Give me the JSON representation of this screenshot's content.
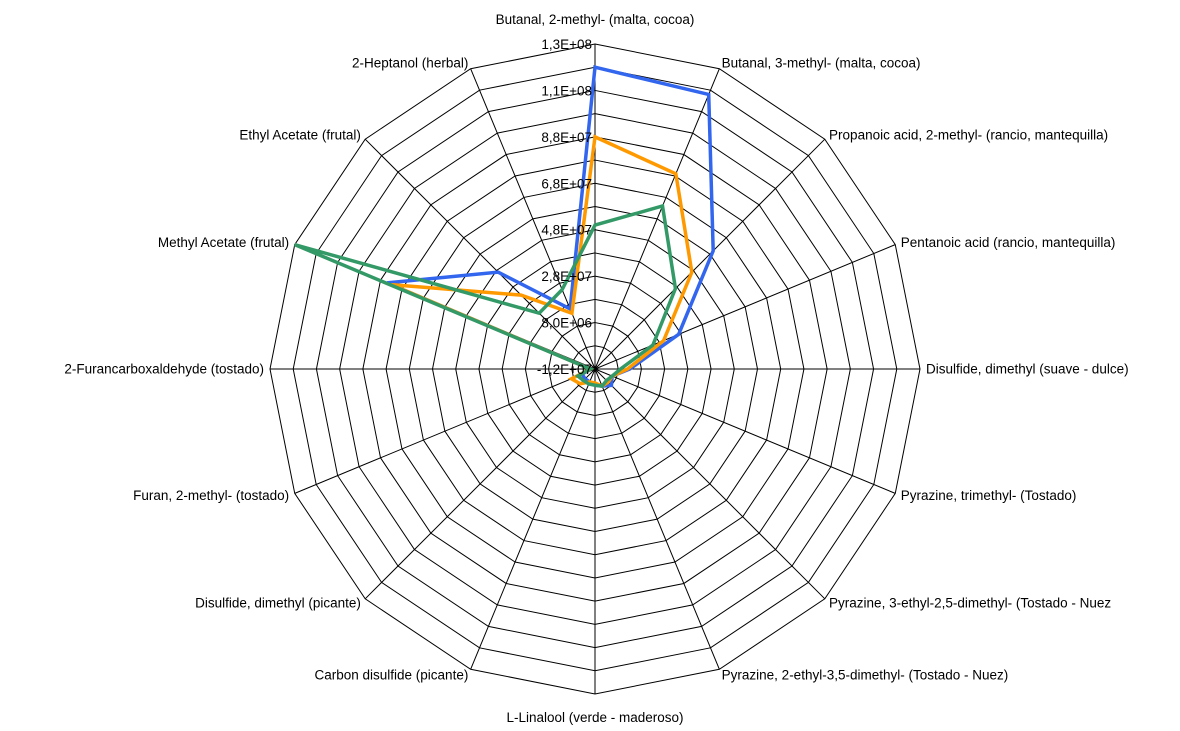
{
  "chart_data": {
    "type": "radar",
    "axes": [
      "Butanal, 2-methyl- (malta, cocoa)",
      "Butanal, 3-methyl- (malta, cocoa)",
      "Propanoic acid, 2-methyl- (rancio, mantequilla)",
      "Pentanoic acid (rancio, mantequilla)",
      "Disulfide, dimethyl (suave - dulce)",
      "Pyrazine, trimethyl- (Tostado)",
      "Pyrazine, 3-ethyl-2,5-dimethyl- (Tostado - Nuez",
      "Pyrazine, 2-ethyl-3,5-dimethyl-  (Tostado - Nuez)",
      "L-Linalool (verde - maderoso)",
      "Carbon disulfide (picante)",
      "Disulfide, dimethyl (picante)",
      "Furan, 2-methyl- (tostado)",
      "2-Furancarboxaldehyde (tostado)",
      "Methyl Acetate (frutal)",
      "Ethyl Acetate (frutal)",
      "2-Heptanol (herbal)"
    ],
    "ticks": [
      "-1,2E+07",
      "8,0E+06",
      "2,8E+07",
      "4,8E+07",
      "6,8E+07",
      "8,8E+07",
      "1,1E+08",
      "1,3E+08"
    ],
    "rlim": [
      -12000000,
      128000000
    ],
    "grid": true,
    "series": [
      {
        "color": "#3366ee",
        "values": [
          118000000,
          116000000,
          60000000,
          27000000,
          3000000,
          -4000000,
          -2000000,
          -4000000,
          -5000000,
          -6000000,
          -6000000,
          -6000000,
          -10000000,
          85000000,
          47000000,
          16000000
        ]
      },
      {
        "color": "#ff9900",
        "values": [
          88000000,
          79000000,
          47000000,
          20000000,
          2000000,
          -4000000,
          -4000000,
          -4000000,
          -6000000,
          -6000000,
          -3000000,
          -1000000,
          -10000000,
          83000000,
          33000000,
          14000000
        ]
      },
      {
        "color": "#339966",
        "values": [
          50000000,
          64000000,
          37000000,
          15000000,
          -1000000,
          -4000000,
          -5000000,
          -4000000,
          -5000000,
          -5000000,
          -5000000,
          -4000000,
          -10000000,
          128000000,
          22000000,
          25000000
        ]
      }
    ]
  }
}
